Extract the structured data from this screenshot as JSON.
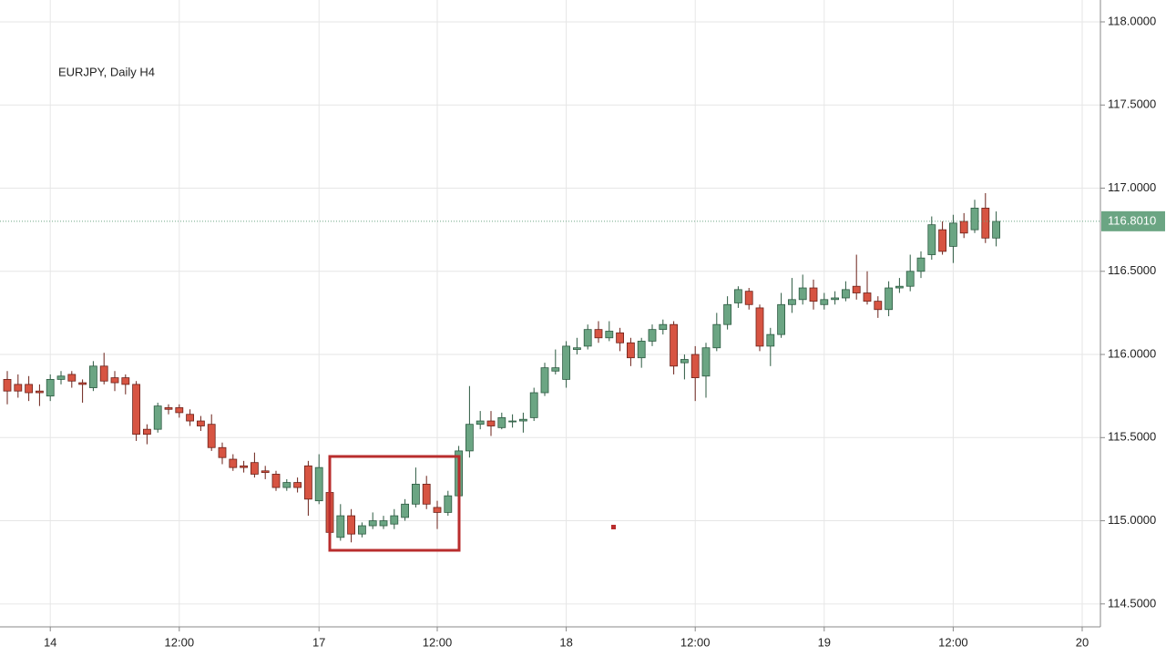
{
  "chart_data": {
    "type": "candlestick",
    "title": "EURJPY, Daily H4",
    "categories": [
      null,
      null,
      null,
      null,
      "14",
      null,
      null,
      null,
      null,
      null,
      null,
      null,
      null,
      null,
      null,
      null,
      "12:00",
      null,
      null,
      null,
      null,
      null,
      null,
      null,
      null,
      null,
      null,
      null,
      null,
      "17",
      null,
      null,
      null,
      null,
      null,
      null,
      null,
      null,
      null,
      null,
      "12:00",
      null,
      null,
      null,
      null,
      null,
      null,
      null,
      null,
      null,
      null,
      null,
      "18",
      null,
      null,
      null,
      null,
      null,
      null,
      null,
      null,
      null,
      null,
      null,
      "12:00",
      null,
      null,
      null,
      null,
      null,
      null,
      null,
      null,
      null,
      null,
      null,
      "19",
      null,
      null,
      null,
      null,
      null,
      null,
      null,
      null,
      null,
      null,
      null,
      "12:00",
      null,
      null,
      null,
      null,
      null,
      null,
      null,
      null,
      null,
      null,
      null,
      "20"
    ],
    "open": [
      115.85,
      115.82,
      115.82,
      115.78,
      115.75,
      115.85,
      115.88,
      115.83,
      115.8,
      115.93,
      115.86,
      115.86,
      115.82,
      115.55,
      115.55,
      115.68,
      115.68,
      115.64,
      115.6,
      115.58,
      115.44,
      115.37,
      115.33,
      115.35,
      115.3,
      115.28,
      115.2,
      115.23,
      115.33,
      115.12,
      115.17,
      114.9,
      115.03,
      114.92,
      114.97,
      114.97,
      114.98,
      115.02,
      115.1,
      115.22,
      115.08,
      115.05,
      115.15,
      115.42,
      115.58,
      115.6,
      115.56,
      115.6,
      115.6,
      115.62,
      115.77,
      115.9,
      115.85,
      116.03,
      116.05,
      116.15,
      116.1,
      116.13,
      116.07,
      115.98,
      116.08,
      116.15,
      116.18,
      115.95,
      116.0,
      115.87,
      116.04,
      116.18,
      116.31,
      116.38,
      116.28,
      116.05,
      116.12,
      116.3,
      116.33,
      116.4,
      116.3,
      116.33,
      116.34,
      116.41,
      116.37,
      116.32,
      116.27,
      116.4,
      116.41,
      116.5,
      116.6,
      116.75,
      116.65,
      116.8,
      116.75,
      116.88,
      116.7,
      null,
      null,
      null,
      null,
      null,
      null,
      null,
      null
    ],
    "high": [
      115.9,
      115.88,
      115.87,
      115.82,
      115.88,
      115.9,
      115.9,
      115.85,
      115.96,
      116.01,
      115.9,
      115.88,
      115.84,
      115.58,
      115.71,
      115.7,
      115.7,
      115.67,
      115.63,
      115.64,
      115.47,
      115.4,
      115.36,
      115.41,
      115.33,
      115.3,
      115.25,
      115.26,
      115.36,
      115.4,
      115.2,
      115.1,
      115.07,
      114.99,
      115.05,
      115.03,
      115.07,
      115.13,
      115.32,
      115.27,
      115.12,
      115.18,
      115.45,
      115.81,
      115.66,
      115.66,
      115.65,
      115.64,
      115.65,
      115.8,
      115.95,
      116.03,
      116.08,
      116.1,
      116.18,
      116.2,
      116.2,
      116.16,
      116.1,
      116.1,
      116.18,
      116.21,
      116.2,
      116.0,
      116.05,
      116.07,
      116.25,
      116.35,
      116.41,
      116.4,
      116.3,
      116.16,
      116.37,
      116.46,
      116.48,
      116.45,
      116.37,
      116.38,
      116.44,
      116.6,
      116.5,
      116.35,
      116.44,
      116.46,
      116.6,
      116.62,
      116.83,
      116.8,
      116.84,
      116.85,
      116.93,
      116.97,
      116.86,
      null,
      null,
      null,
      null,
      null,
      null,
      null,
      null
    ],
    "low": [
      115.7,
      115.74,
      115.72,
      115.69,
      115.72,
      115.82,
      115.8,
      115.71,
      115.78,
      115.82,
      115.78,
      115.76,
      115.48,
      115.46,
      115.53,
      115.64,
      115.62,
      115.57,
      115.54,
      115.42,
      115.34,
      115.3,
      115.29,
      115.26,
      115.25,
      115.18,
      115.18,
      115.17,
      115.03,
      115.1,
      114.88,
      114.88,
      114.87,
      114.9,
      114.95,
      114.95,
      114.95,
      115.0,
      115.08,
      115.07,
      114.95,
      115.03,
      115.13,
      115.38,
      115.55,
      115.51,
      115.55,
      115.56,
      115.53,
      115.6,
      115.75,
      115.88,
      115.8,
      116.0,
      116.03,
      116.07,
      116.08,
      116.02,
      115.93,
      115.92,
      116.05,
      116.12,
      115.88,
      115.85,
      115.72,
      115.74,
      116.02,
      116.15,
      116.28,
      116.27,
      116.02,
      115.93,
      116.1,
      116.25,
      116.3,
      116.27,
      116.27,
      116.3,
      116.32,
      116.33,
      116.3,
      116.22,
      116.23,
      116.37,
      116.38,
      116.46,
      116.57,
      116.6,
      116.55,
      116.7,
      116.73,
      116.67,
      116.65,
      null,
      null,
      null,
      null,
      null,
      null,
      null,
      null
    ],
    "close": [
      115.78,
      115.78,
      115.77,
      115.77,
      115.85,
      115.87,
      115.84,
      115.82,
      115.93,
      115.84,
      115.83,
      115.82,
      115.52,
      115.52,
      115.69,
      115.67,
      115.65,
      115.6,
      115.57,
      115.44,
      115.38,
      115.32,
      115.32,
      115.28,
      115.29,
      115.2,
      115.23,
      115.2,
      115.13,
      115.32,
      114.93,
      115.03,
      114.92,
      114.97,
      115.0,
      115.0,
      115.03,
      115.1,
      115.22,
      115.1,
      115.05,
      115.15,
      115.42,
      115.58,
      115.6,
      115.57,
      115.62,
      115.6,
      115.61,
      115.77,
      115.92,
      115.92,
      116.05,
      116.04,
      116.15,
      116.1,
      116.14,
      116.07,
      115.98,
      116.08,
      116.15,
      116.18,
      115.93,
      115.97,
      115.86,
      116.04,
      116.18,
      116.3,
      116.39,
      116.3,
      116.05,
      116.12,
      116.3,
      116.33,
      116.4,
      116.32,
      116.33,
      116.34,
      116.39,
      116.37,
      116.32,
      116.27,
      116.4,
      116.41,
      116.5,
      116.58,
      116.78,
      116.62,
      116.79,
      116.73,
      116.88,
      116.7,
      116.8,
      null,
      null,
      null,
      null,
      null,
      null,
      null,
      null
    ],
    "up_color": "#6ba583",
    "down_color": "#d75442",
    "ylim": [
      114.362,
      118.1315
    ],
    "yticks": [
      {
        "value": 114.5,
        "label": "114.5000"
      },
      {
        "value": 115,
        "label": "115.0000"
      },
      {
        "value": 115.5,
        "label": "115.5000"
      },
      {
        "value": 116,
        "label": "116.0000"
      },
      {
        "value": 116.5,
        "label": "116.5000"
      },
      {
        "value": 117,
        "label": "117.0000"
      },
      {
        "value": 117.5,
        "label": "117.5000"
      },
      {
        "value": 118,
        "label": "118.0000"
      }
    ],
    "last_price": {
      "value": 116.801,
      "label": "116.8010"
    },
    "grid": true
  }
}
